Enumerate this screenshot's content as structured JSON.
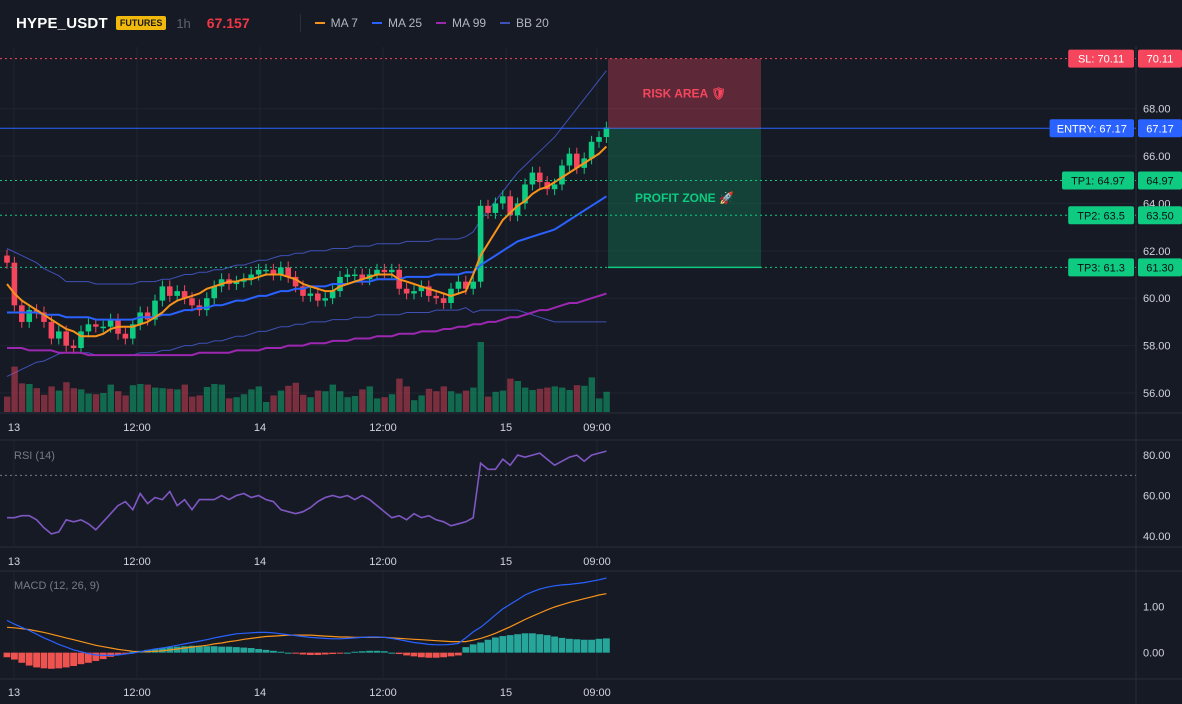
{
  "header": {
    "symbol": "HYPE_USDT",
    "badge": "FUTURES",
    "timeframe": "1h",
    "price": "67.157",
    "legend": [
      {
        "label": "MA 7",
        "color": "#f7931a"
      },
      {
        "label": "MA 25",
        "color": "#2962ff"
      },
      {
        "label": "MA 99",
        "color": "#9c27b0"
      },
      {
        "label": "BB 20",
        "color": "#3f51b5"
      }
    ]
  },
  "colors": {
    "up": "#0ecb81",
    "down": "#f6465d",
    "rsi": "#7e57c2",
    "macd": "#2962ff",
    "signal": "#f7931a",
    "entry": "#2962ff",
    "sl": "#f6465d",
    "tp": "#0ecb81"
  },
  "x_labels": [
    "13",
    "12:00",
    "14",
    "12:00",
    "15",
    "09:00"
  ],
  "levels": {
    "sl": {
      "label": "SL: 70.11",
      "value": "70.11",
      "price": 70.11
    },
    "entry": {
      "label": "ENTRY: 67.17",
      "value": "67.17",
      "price": 67.17
    },
    "tps": [
      {
        "label": "TP1: 64.97",
        "value": "64.97",
        "price": 64.97
      },
      {
        "label": "TP2: 63.5",
        "value": "63.50",
        "price": 63.5
      },
      {
        "label": "TP3: 61.3",
        "value": "61.30",
        "price": 61.3
      }
    ]
  },
  "zones": {
    "risk": "RISK AREA 🛡",
    "profit": "PROFIT ZONE 🚀"
  },
  "chart_data": [
    {
      "type": "candlestick",
      "title": "HYPE_USDT",
      "ylim": [
        55.2,
        70.6
      ],
      "yticks": [
        "56.00",
        "58.00",
        "60.00",
        "62.00",
        "64.00",
        "66.00",
        "68.00"
      ],
      "series": [
        {
          "name": "price",
          "close": [
            61.5,
            59.7,
            59.0,
            59.5,
            59.4,
            59.0,
            58.3,
            58.6,
            58.0,
            57.9,
            58.6,
            58.9,
            58.8,
            58.8,
            59.1,
            58.5,
            58.3,
            58.9,
            59.4,
            59.1,
            59.9,
            60.5,
            60.1,
            60.3,
            60.0,
            59.7,
            59.5,
            60.0,
            60.5,
            60.8,
            60.6,
            60.7,
            60.8,
            61.0,
            61.2,
            61.2,
            61.0,
            61.3,
            60.9,
            60.5,
            60.1,
            60.2,
            59.9,
            60.0,
            60.3,
            60.9,
            61.0,
            61.0,
            60.8,
            61.0,
            61.2,
            61.1,
            61.2,
            60.4,
            60.2,
            60.3,
            60.5,
            60.1,
            60.0,
            59.8,
            60.4,
            60.7,
            60.4,
            60.7,
            63.9,
            63.6,
            64.0,
            64.3,
            63.5,
            64.0,
            64.8,
            65.3,
            64.9,
            64.6,
            64.8,
            65.6,
            66.1,
            65.5,
            65.9,
            66.6,
            66.8,
            67.2
          ]
        },
        {
          "name": "MA 7",
          "values": [
            60.6,
            60.2,
            59.9,
            59.7,
            59.5,
            59.3,
            59.1,
            58.9,
            58.7,
            58.6,
            58.4,
            58.4,
            58.4,
            58.5,
            58.7,
            58.8,
            58.8,
            58.8,
            58.9,
            59.0,
            59.2,
            59.4,
            59.7,
            59.9,
            60.0,
            60.1,
            60.2,
            60.4,
            60.5,
            60.6,
            60.7,
            60.7,
            60.8,
            60.8,
            60.9,
            61.0,
            61.0,
            61.0,
            60.9,
            60.8,
            60.6,
            60.5,
            60.4,
            60.3,
            60.3,
            60.5,
            60.6,
            60.7,
            60.8,
            60.9,
            61.0,
            61.0,
            61.0,
            60.8,
            60.7,
            60.6,
            60.5,
            60.4,
            60.3,
            60.2,
            60.1,
            60.2,
            60.3,
            61.0,
            61.8,
            62.3,
            62.8,
            63.3,
            63.6,
            63.9,
            64.1,
            64.4,
            64.6,
            64.7,
            64.9,
            65.1,
            65.3,
            65.5,
            65.7,
            65.9,
            66.1,
            66.4
          ]
        },
        {
          "name": "MA 25",
          "values": [
            59.4,
            59.4,
            59.4,
            59.4,
            59.4,
            59.3,
            59.3,
            59.3,
            59.2,
            59.2,
            59.2,
            59.2,
            59.1,
            59.1,
            59.1,
            59.1,
            59.1,
            59.1,
            59.2,
            59.2,
            59.2,
            59.3,
            59.3,
            59.4,
            59.5,
            59.5,
            59.6,
            59.6,
            59.7,
            59.7,
            59.8,
            59.9,
            59.9,
            60.0,
            60.1,
            60.1,
            60.2,
            60.3,
            60.3,
            60.4,
            60.4,
            60.5,
            60.5,
            60.5,
            60.6,
            60.6,
            60.6,
            60.7,
            60.7,
            60.7,
            60.8,
            60.8,
            60.8,
            60.8,
            60.9,
            60.9,
            60.9,
            60.9,
            61.0,
            61.0,
            61.0,
            61.0,
            61.1,
            61.1,
            61.4,
            61.6,
            61.8,
            62.0,
            62.2,
            62.4,
            62.5,
            62.6,
            62.7,
            62.8,
            62.9,
            63.1,
            63.3,
            63.5,
            63.7,
            63.9,
            64.1,
            64.3
          ]
        },
        {
          "name": "MA 99",
          "values": [
            57.9,
            57.9,
            57.9,
            57.8,
            57.8,
            57.8,
            57.8,
            57.7,
            57.7,
            57.7,
            57.7,
            57.6,
            57.6,
            57.6,
            57.6,
            57.6,
            57.6,
            57.6,
            57.6,
            57.6,
            57.6,
            57.6,
            57.6,
            57.6,
            57.6,
            57.6,
            57.7,
            57.7,
            57.7,
            57.7,
            57.7,
            57.8,
            57.8,
            57.8,
            57.8,
            57.9,
            57.9,
            57.9,
            58.0,
            58.0,
            58.0,
            58.1,
            58.1,
            58.1,
            58.2,
            58.2,
            58.2,
            58.3,
            58.3,
            58.3,
            58.4,
            58.4,
            58.4,
            58.5,
            58.5,
            58.5,
            58.6,
            58.6,
            58.6,
            58.7,
            58.7,
            58.8,
            58.8,
            58.9,
            58.9,
            59.0,
            59.0,
            59.1,
            59.2,
            59.2,
            59.3,
            59.4,
            59.5,
            59.5,
            59.6,
            59.7,
            59.8,
            59.8,
            59.9,
            60.0,
            60.1,
            60.2
          ]
        }
      ]
    },
    {
      "type": "line",
      "title": "RSI (14)",
      "ylim": [
        35,
        87
      ],
      "yticks": [
        "40.00",
        "60.00",
        "80.00"
      ],
      "series": [
        {
          "name": "RSI",
          "values": [
            49,
            49,
            50,
            50,
            48,
            44,
            41,
            42,
            48,
            47,
            48,
            46,
            43,
            47,
            51,
            55,
            57,
            53,
            61,
            56,
            59,
            58,
            62,
            55,
            58,
            53,
            58,
            58,
            58,
            60,
            58,
            60,
            61,
            59,
            60,
            58,
            57,
            53,
            52,
            51,
            52,
            54,
            57,
            59,
            60,
            59,
            60,
            58,
            60,
            58,
            55,
            52,
            49,
            50,
            48,
            51,
            49,
            50,
            48,
            47,
            45,
            46,
            47,
            49,
            76,
            73,
            73,
            78,
            75,
            80,
            79,
            80,
            81,
            78,
            75,
            77,
            79,
            80,
            77,
            80,
            81,
            82
          ]
        }
      ]
    },
    {
      "type": "bar",
      "title": "MACD (12, 26, 9)",
      "ylim": [
        -0.55,
        1.75
      ],
      "yticks": [
        "0.00",
        "1.00"
      ],
      "series": [
        {
          "name": "Histogram",
          "values": [
            -0.1,
            -0.15,
            -0.22,
            -0.28,
            -0.32,
            -0.34,
            -0.35,
            -0.34,
            -0.32,
            -0.29,
            -0.25,
            -0.22,
            -0.18,
            -0.14,
            -0.09,
            -0.05,
            -0.01,
            0.02,
            0.04,
            0.06,
            0.08,
            0.1,
            0.12,
            0.13,
            0.14,
            0.15,
            0.15,
            0.14,
            0.14,
            0.13,
            0.13,
            0.12,
            0.11,
            0.1,
            0.08,
            0.06,
            0.04,
            0.02,
            0.0,
            -0.02,
            -0.04,
            -0.05,
            -0.05,
            -0.04,
            -0.03,
            -0.02,
            0.0,
            0.02,
            0.03,
            0.04,
            0.04,
            0.03,
            0.0,
            -0.03,
            -0.06,
            -0.08,
            -0.1,
            -0.11,
            -0.11,
            -0.1,
            -0.08,
            -0.06,
            0.12,
            0.18,
            0.22,
            0.28,
            0.33,
            0.36,
            0.38,
            0.4,
            0.42,
            0.42,
            0.4,
            0.38,
            0.35,
            0.32,
            0.3,
            0.29,
            0.28,
            0.28,
            0.3,
            0.31
          ]
        },
        {
          "name": "MACD",
          "values": [
            0.7,
            0.62,
            0.55,
            0.48,
            0.4,
            0.32,
            0.25,
            0.18,
            0.12,
            0.06,
            0.02,
            -0.02,
            -0.05,
            -0.06,
            -0.06,
            -0.05,
            -0.03,
            -0.01,
            0.02,
            0.05,
            0.08,
            0.1,
            0.13,
            0.16,
            0.19,
            0.22,
            0.25,
            0.28,
            0.32,
            0.35,
            0.38,
            0.41,
            0.42,
            0.43,
            0.44,
            0.44,
            0.43,
            0.41,
            0.39,
            0.37,
            0.35,
            0.33,
            0.32,
            0.31,
            0.3,
            0.3,
            0.31,
            0.32,
            0.33,
            0.34,
            0.34,
            0.33,
            0.31,
            0.28,
            0.25,
            0.22,
            0.2,
            0.18,
            0.17,
            0.17,
            0.18,
            0.2,
            0.32,
            0.45,
            0.55,
            0.68,
            0.82,
            0.95,
            1.05,
            1.15,
            1.25,
            1.32,
            1.38,
            1.42,
            1.45,
            1.47,
            1.48,
            1.5,
            1.52,
            1.55,
            1.58,
            1.62
          ]
        },
        {
          "name": "Signal",
          "values": [
            0.55,
            0.54,
            0.52,
            0.5,
            0.47,
            0.44,
            0.4,
            0.36,
            0.32,
            0.28,
            0.24,
            0.2,
            0.16,
            0.13,
            0.1,
            0.07,
            0.05,
            0.03,
            0.02,
            0.02,
            0.03,
            0.04,
            0.06,
            0.08,
            0.1,
            0.12,
            0.14,
            0.16,
            0.19,
            0.21,
            0.24,
            0.26,
            0.29,
            0.31,
            0.33,
            0.35,
            0.36,
            0.37,
            0.38,
            0.38,
            0.38,
            0.38,
            0.37,
            0.36,
            0.35,
            0.34,
            0.34,
            0.33,
            0.33,
            0.33,
            0.33,
            0.33,
            0.32,
            0.31,
            0.3,
            0.29,
            0.28,
            0.27,
            0.26,
            0.25,
            0.24,
            0.24,
            0.24,
            0.27,
            0.31,
            0.36,
            0.42,
            0.49,
            0.56,
            0.64,
            0.72,
            0.79,
            0.86,
            0.93,
            0.99,
            1.04,
            1.09,
            1.13,
            1.17,
            1.21,
            1.25,
            1.28
          ]
        }
      ]
    }
  ]
}
